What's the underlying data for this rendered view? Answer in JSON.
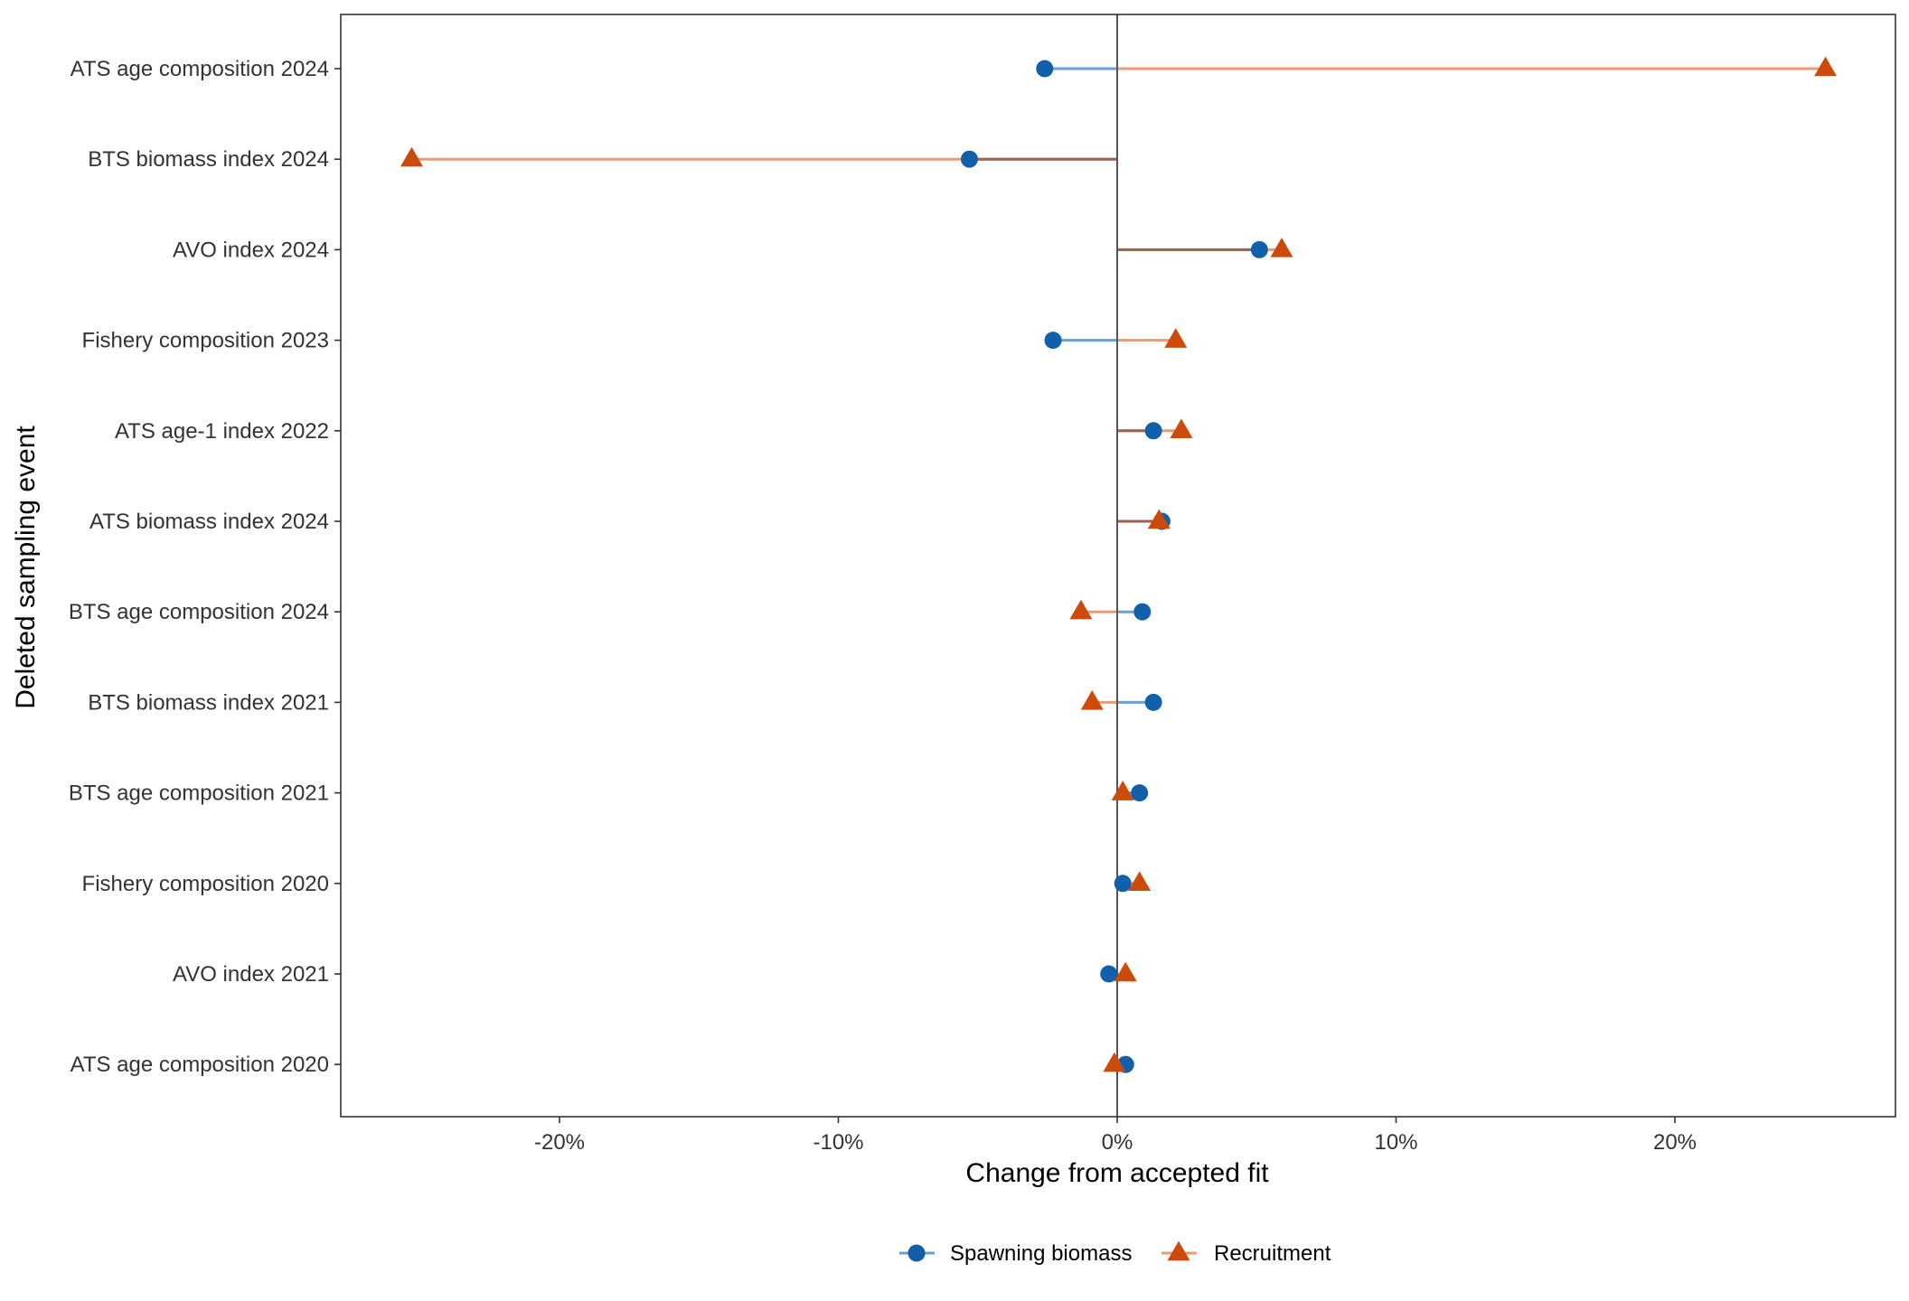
{
  "chart_data": {
    "type": "scatter",
    "xlabel": "Change from accepted fit",
    "ylabel": "Deleted sampling event",
    "x_ticks": [
      -20,
      -10,
      0,
      10,
      20
    ],
    "x_tick_labels": [
      "-20%",
      "-10%",
      "0%",
      "10%",
      "20%"
    ],
    "xlim": [
      -27.9,
      27.9
    ],
    "categories": [
      "ATS age composition 2024",
      "BTS biomass index 2024",
      "AVO index 2024",
      "Fishery composition 2023",
      "ATS age-1 index 2022",
      "ATS biomass index 2024",
      "BTS age composition 2024",
      "BTS biomass index 2021",
      "BTS age composition 2021",
      "Fishery composition 2020",
      "AVO index 2021",
      "ATS age composition 2020"
    ],
    "series": [
      {
        "name": "Spawning biomass",
        "marker": "circle",
        "color": "#1160a9",
        "line_color": "#6a9fd4",
        "values": [
          -2.6,
          -5.3,
          5.1,
          -2.3,
          1.3,
          1.6,
          0.9,
          1.3,
          0.8,
          0.2,
          -0.3,
          0.3
        ]
      },
      {
        "name": "Recruitment",
        "marker": "triangle",
        "color": "#cc4a0a",
        "line_color": "#ec9a76",
        "values": [
          25.4,
          -25.3,
          5.9,
          2.1,
          2.3,
          1.5,
          -1.3,
          -0.9,
          0.2,
          0.8,
          0.3,
          -0.1
        ]
      }
    ],
    "overlap_line_color": "#9a6354",
    "grid": false,
    "legend_position": "bottom"
  }
}
